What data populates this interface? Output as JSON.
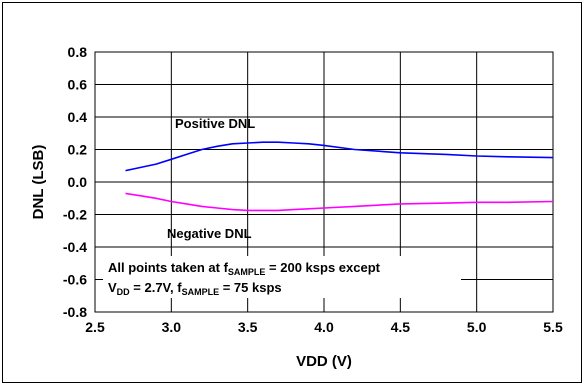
{
  "chart_data": {
    "type": "line",
    "title": "",
    "xlabel": "VDD (V)",
    "ylabel": "DNL (LSB)",
    "xlim": [
      2.5,
      5.5
    ],
    "ylim": [
      -0.8,
      0.8
    ],
    "x_ticks": [
      "2.5",
      "3.0",
      "3.5",
      "4.0",
      "4.5",
      "5.0",
      "5.5"
    ],
    "y_ticks": [
      "0.8",
      "0.6",
      "0.4",
      "0.2",
      "0.0",
      "-0.2",
      "-0.4",
      "-0.6",
      "-0.8"
    ],
    "grid": true,
    "series": [
      {
        "name": "Positive DNL",
        "color": "#0000ff",
        "x": [
          2.7,
          2.8,
          2.9,
          3.0,
          3.1,
          3.2,
          3.3,
          3.4,
          3.5,
          3.6,
          3.7,
          3.8,
          3.9,
          4.0,
          4.2,
          4.5,
          4.8,
          5.0,
          5.2,
          5.5
        ],
        "y": [
          0.07,
          0.09,
          0.11,
          0.14,
          0.17,
          0.2,
          0.22,
          0.235,
          0.24,
          0.245,
          0.245,
          0.24,
          0.235,
          0.225,
          0.2,
          0.18,
          0.17,
          0.16,
          0.155,
          0.15
        ]
      },
      {
        "name": "Negative DNL",
        "color": "#ff00ff",
        "x": [
          2.7,
          2.8,
          2.9,
          3.0,
          3.1,
          3.2,
          3.3,
          3.4,
          3.5,
          3.6,
          3.7,
          3.8,
          3.9,
          4.0,
          4.2,
          4.5,
          4.8,
          5.0,
          5.2,
          5.5
        ],
        "y": [
          -0.07,
          -0.085,
          -0.1,
          -0.12,
          -0.135,
          -0.15,
          -0.16,
          -0.17,
          -0.175,
          -0.175,
          -0.175,
          -0.17,
          -0.165,
          -0.16,
          -0.15,
          -0.135,
          -0.13,
          -0.125,
          -0.125,
          -0.12
        ]
      }
    ],
    "annotations": {
      "positive_label": "Positive DNL",
      "negative_label": "Negative DNL",
      "note_line1_prefix": "All points taken at f",
      "note_line1_sub": "SAMPLE",
      "note_line1_suffix": " = 200 ksps except",
      "note_line2_v": "V",
      "note_line2_vsub": "DD",
      "note_line2_mid": " = 2.7V,  f",
      "note_line2_fsub": "SAMPLE",
      "note_line2_suffix": " = 75 ksps"
    }
  }
}
